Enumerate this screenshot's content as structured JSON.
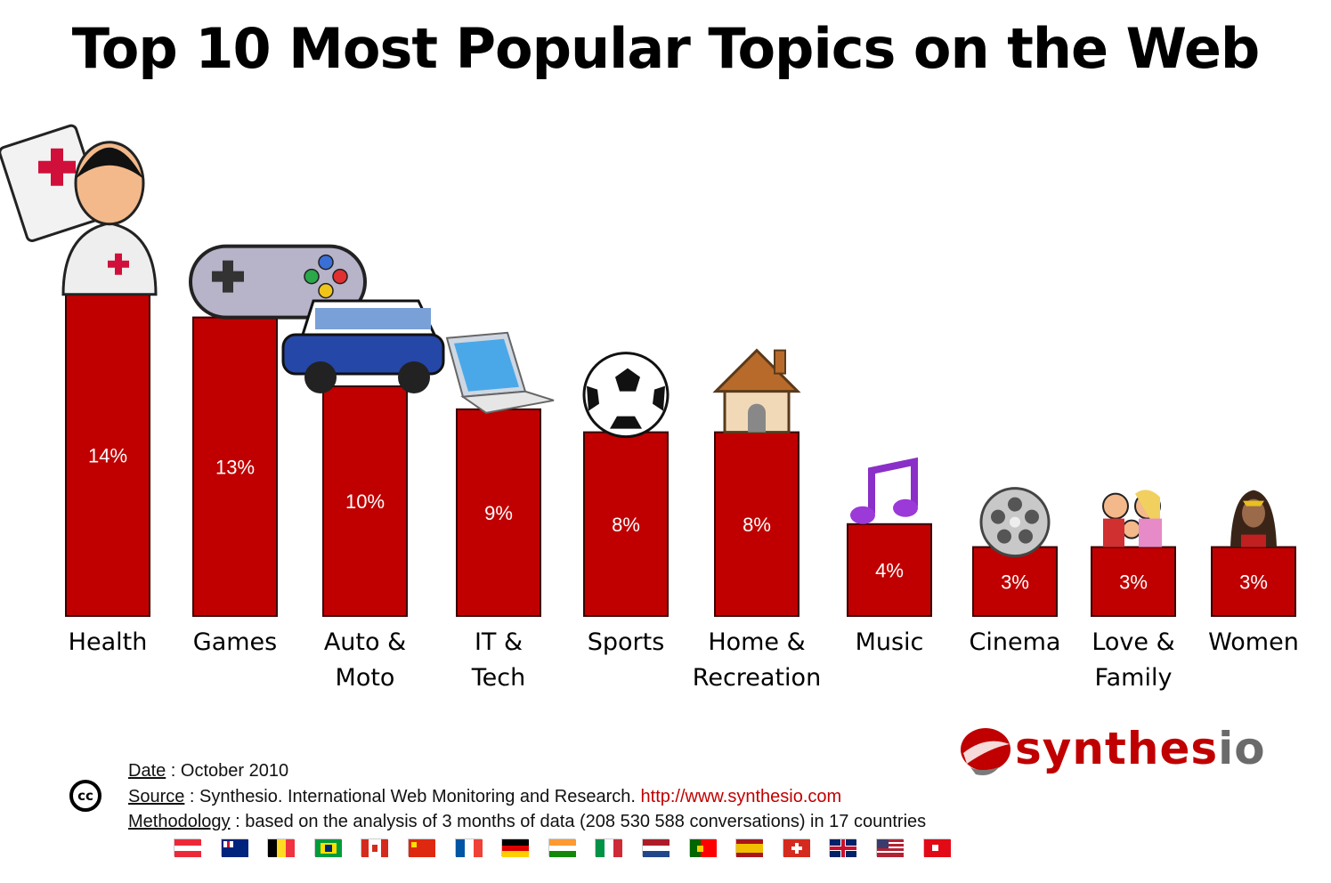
{
  "title": "Top 10 Most Popular Topics on the Web",
  "chart_data": {
    "type": "bar",
    "title": "Top 10 Most Popular Topics on the Web",
    "categories": [
      [
        "Health"
      ],
      [
        "Games"
      ],
      [
        "Auto &",
        "Moto"
      ],
      [
        "IT &",
        "Tech"
      ],
      [
        "Sports"
      ],
      [
        "Home &",
        "Recreation"
      ],
      [
        "Music"
      ],
      [
        "Cinema"
      ],
      [
        "Love &",
        "Family"
      ],
      [
        "Women"
      ]
    ],
    "values": [
      14,
      13,
      10,
      9,
      8,
      8,
      4,
      3,
      3,
      3
    ],
    "value_labels": [
      "14%",
      "13%",
      "10%",
      "9%",
      "8%",
      "8%",
      "4%",
      "3%",
      "3%",
      "3%"
    ],
    "icons": [
      "doctor-icon",
      "gamepad-icon",
      "car-icon",
      "laptop-icon",
      "soccer-ball-icon",
      "house-icon",
      "music-note-icon",
      "film-reel-icon",
      "family-icon",
      "wonder-woman-icon"
    ],
    "ylim": [
      0,
      14
    ],
    "bar_color": "#c00000",
    "grid": false,
    "legend": "none"
  },
  "footer": {
    "date_label": "Date",
    "date_value": " : October 2010",
    "source_label": "Source",
    "source_value": " : Synthesio. International Web Monitoring and Research. ",
    "source_url": "http://www.synthesio.com",
    "method_label": "Methodology",
    "method_value": " : based on the analysis of 3 months of data (208 530 588 conversations) in 17 countries",
    "cc_text": "cc"
  },
  "brand": {
    "name_main": "synthes",
    "name_tail": "io",
    "red": "#c00000",
    "grey": "#6b6b6b"
  },
  "flags": [
    "austria-flag",
    "australia-flag",
    "belgium-flag",
    "brazil-flag",
    "canada-flag",
    "china-flag",
    "france-flag",
    "germany-flag",
    "india-flag",
    "italy-flag",
    "netherlands-flag",
    "portugal-flag",
    "spain-flag",
    "switzerland-flag",
    "uk-flag",
    "usa-flag",
    "turkey-flag"
  ]
}
